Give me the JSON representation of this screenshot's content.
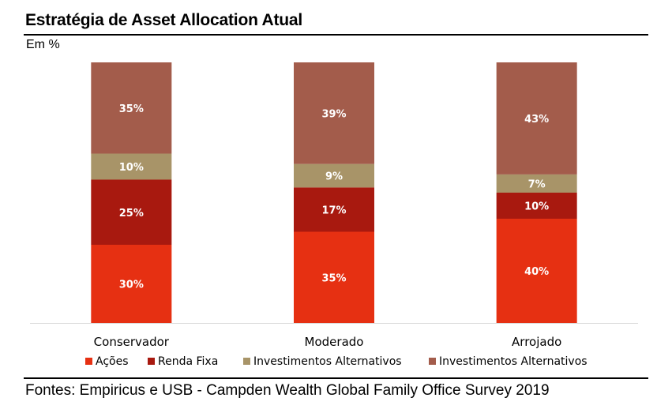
{
  "header": {
    "title": "Estratégia de Asset Allocation Atual",
    "subtitle": "Em %"
  },
  "footer": {
    "source": "Fontes: Empiricus e USB - Campden Wealth Global Family Office Survey 2019"
  },
  "chart_data": {
    "type": "bar",
    "stacked": true,
    "categories": [
      "Conservador",
      "Moderado",
      "Arrojado"
    ],
    "series": [
      {
        "name": "Ações",
        "values": [
          30,
          35,
          40
        ],
        "labels": [
          "30%",
          "35%",
          "40%"
        ],
        "color": "#e63012"
      },
      {
        "name": "Renda Fixa",
        "values": [
          25,
          17,
          10
        ],
        "labels": [
          "25%",
          "17%",
          "10%"
        ],
        "color": "#a8190f"
      },
      {
        "name": "Investimentos Alternativos",
        "values": [
          10,
          9,
          7
        ],
        "labels": [
          "10%",
          "9%",
          "7%"
        ],
        "color": "#a89468"
      },
      {
        "name": "Investimentos Alternativos",
        "values": [
          35,
          39,
          43
        ],
        "labels": [
          "35%",
          "39%",
          "43%"
        ],
        "color": "#a35c4b"
      }
    ],
    "ylim": [
      0,
      100
    ],
    "xlabel": "",
    "ylabel": "",
    "grid": false,
    "legend": "bottom",
    "data_label_color": "#ffffff"
  }
}
